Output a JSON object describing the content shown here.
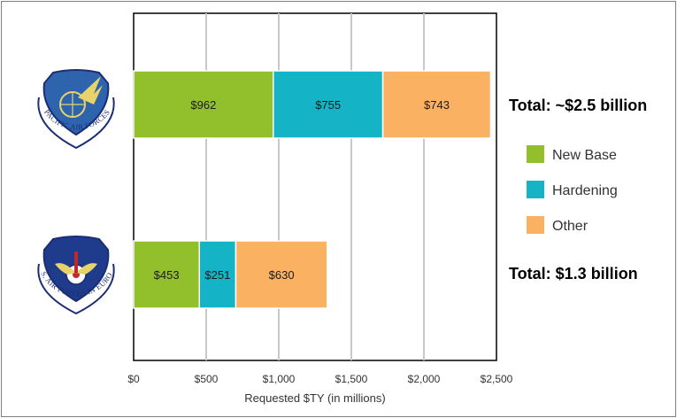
{
  "chart_data": {
    "type": "bar",
    "orientation": "horizontal",
    "stacked": true,
    "categories": [
      "Pacific Air Forces",
      "U.S. Air Forces in Europe"
    ],
    "series": [
      {
        "name": "New Base",
        "values": [
          962,
          453
        ],
        "labels": [
          "$962",
          "$453"
        ],
        "color": "#92c02c"
      },
      {
        "name": "Hardening",
        "values": [
          755,
          251
        ],
        "labels": [
          "$755",
          "$251"
        ],
        "color": "#14b3c6"
      },
      {
        "name": "Other",
        "values": [
          743,
          630
        ],
        "labels": [
          "$743",
          "$630"
        ],
        "color": "#fbb162"
      }
    ],
    "xlim": [
      0,
      2500
    ],
    "xticks": [
      0,
      500,
      1000,
      1500,
      2000,
      2500
    ],
    "xtick_labels": [
      "$0",
      "$500",
      "$1,000",
      "$1,500",
      "$2,000",
      "$2,500"
    ],
    "xlabel": "Requested $TY (in millions)",
    "grid": "vertical",
    "legend_position": "right",
    "annotations": [
      "Total:  ~$2.5 billion",
      "Total:  $1.3 billion"
    ]
  },
  "logos": [
    {
      "name": "Pacific Air Forces seal",
      "text": "PACIFIC AIR FORCES"
    },
    {
      "name": "U.S. Air Forces in Europe seal",
      "text": "U.S. AIR FORCES IN EUROPE"
    }
  ]
}
